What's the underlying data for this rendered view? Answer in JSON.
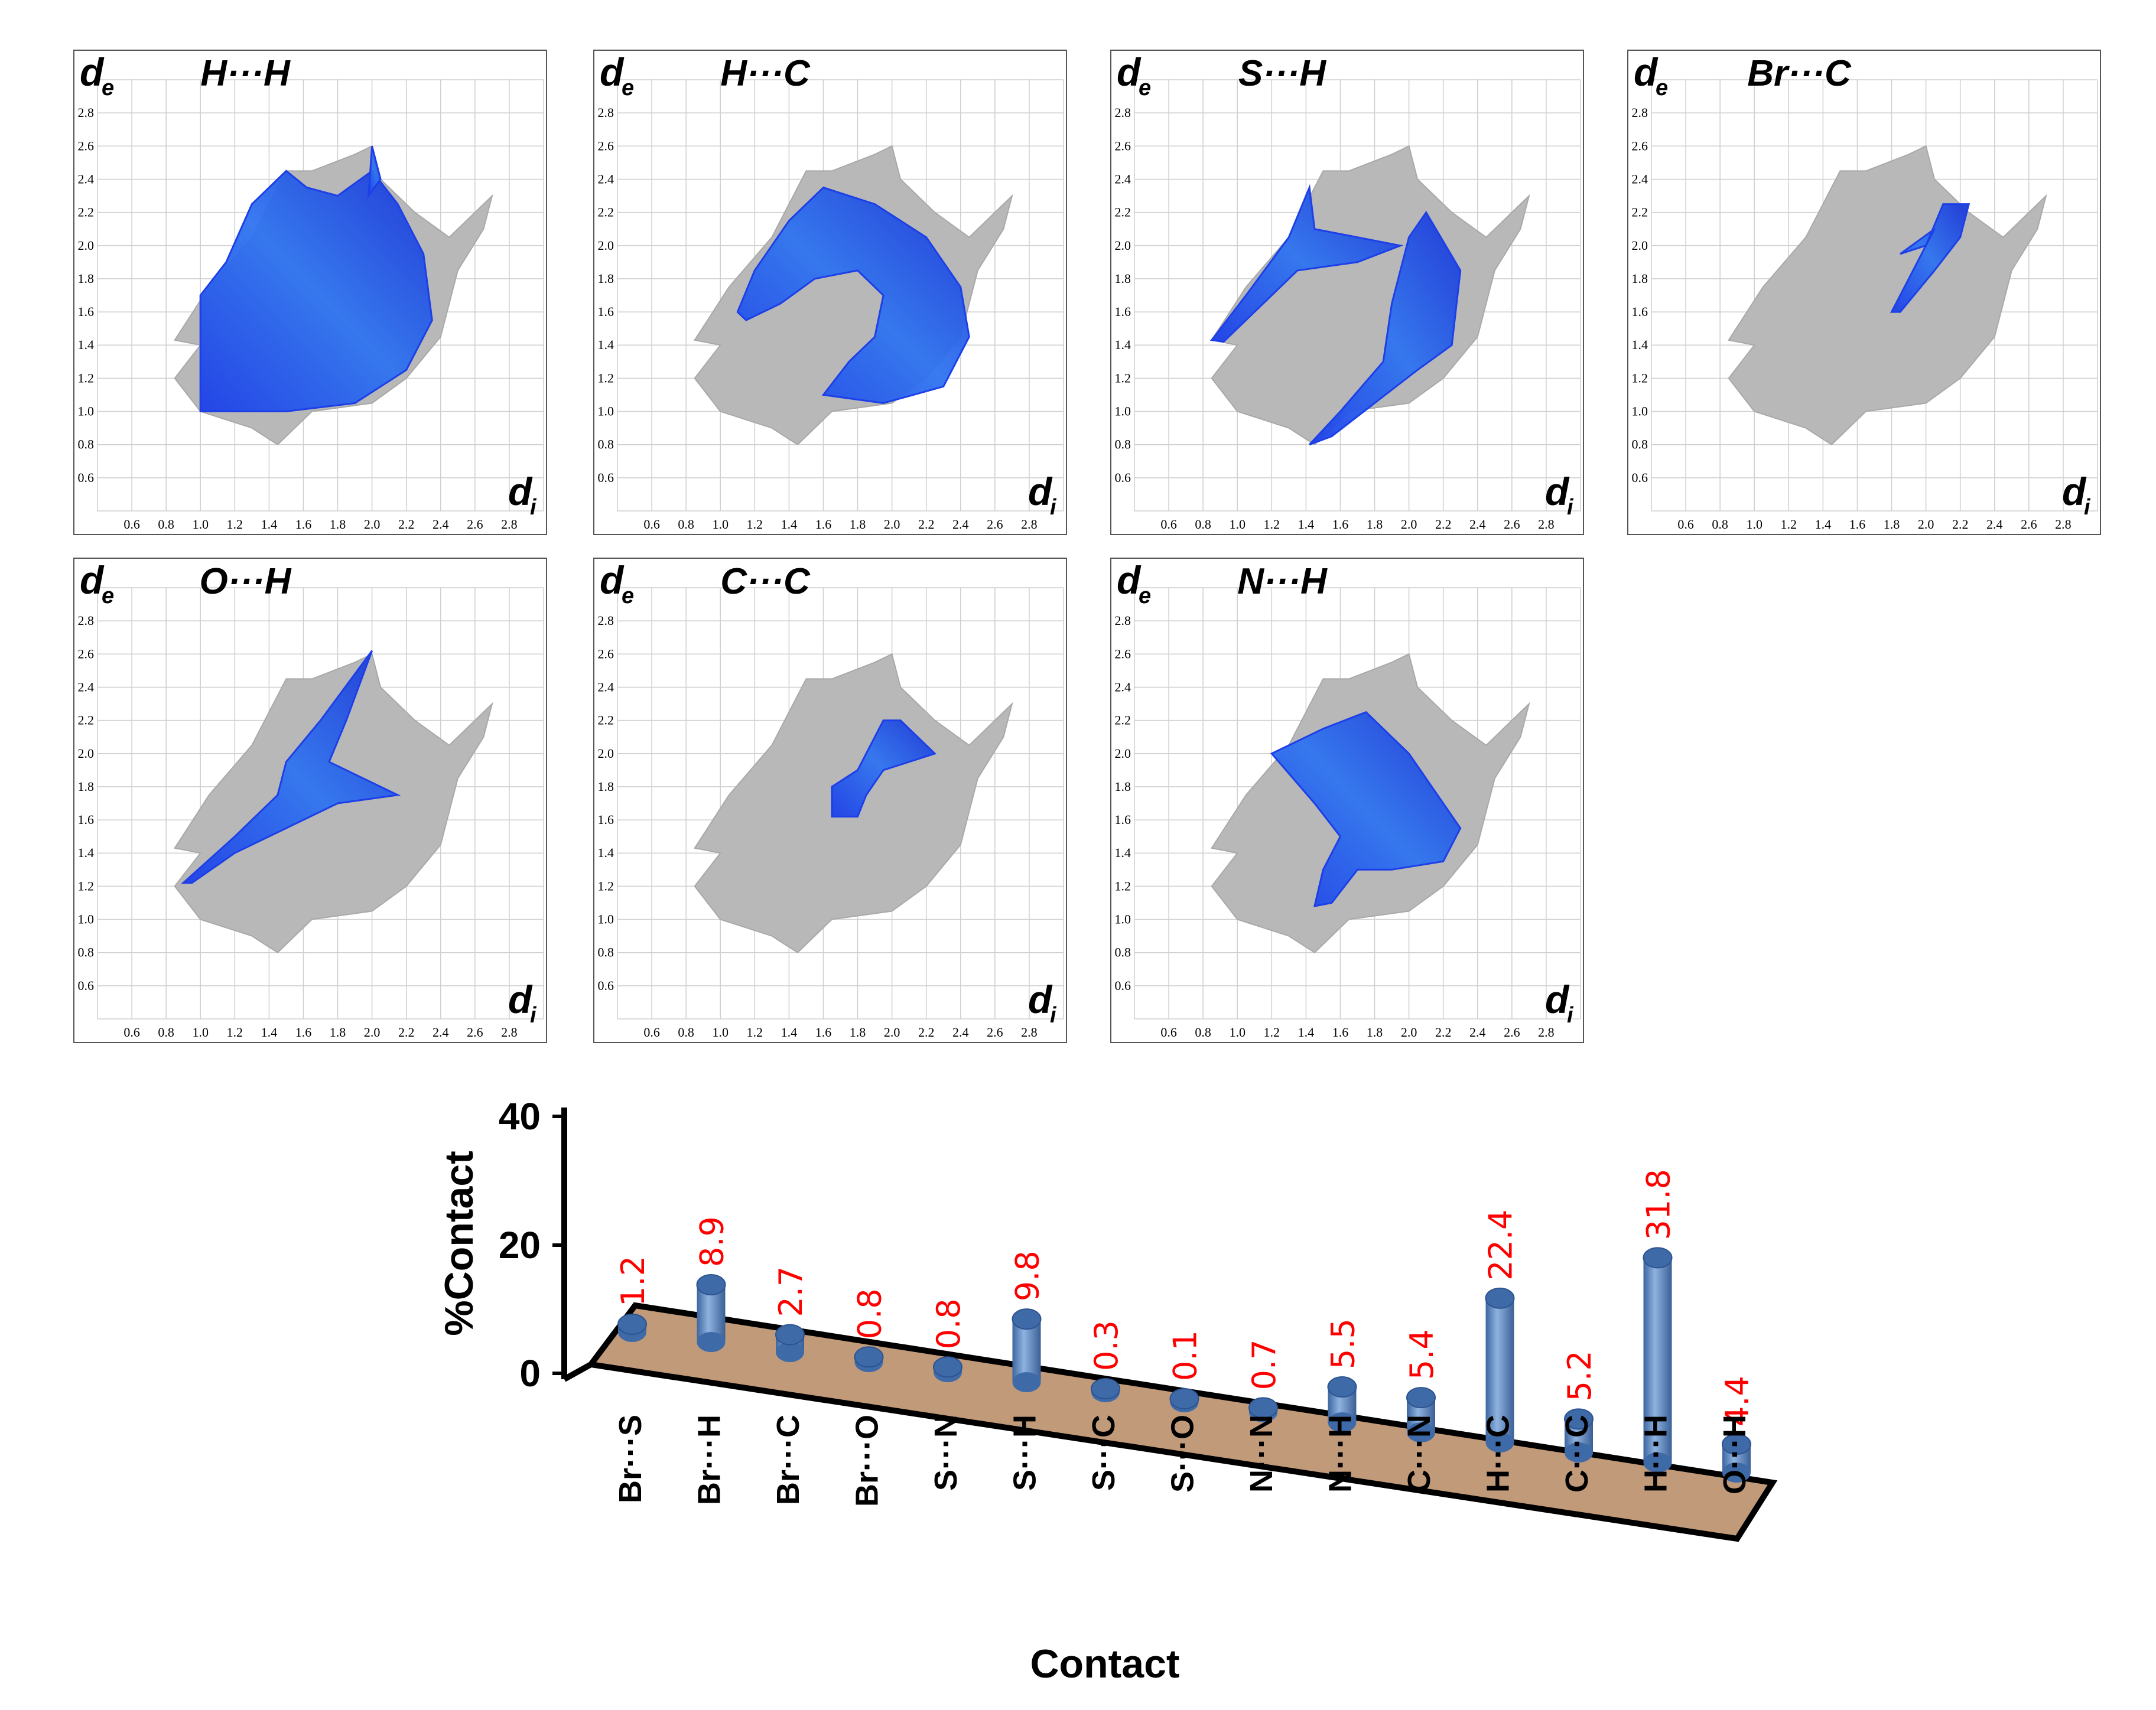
{
  "chart_data": [
    {
      "type": "scatter",
      "subtype": "fingerprint-plot-panels",
      "xlabel": {
        "main": "d",
        "sub": "i"
      },
      "ylabel": {
        "main": "d",
        "sub": "e"
      },
      "xlim": [
        0.4,
        3.0
      ],
      "ylim": [
        0.4,
        3.0
      ],
      "x_ticks": [
        "0.6",
        "0.8",
        "1.0",
        "1.2",
        "1.4",
        "1.6",
        "1.8",
        "2.0",
        "2.2",
        "2.4",
        "2.6",
        "2.8"
      ],
      "y_ticks": [
        "0.6",
        "0.8",
        "1.0",
        "1.2",
        "1.4",
        "1.6",
        "1.8",
        "2.0",
        "2.2",
        "2.4",
        "2.6",
        "2.8"
      ],
      "colors": {
        "full": "#b8b8b8",
        "highlight": "#1c3fe8",
        "highlight_light": "#3a8bf0"
      },
      "panels": [
        {
          "title": "H···H",
          "regions": [
            {
              "points": [
                [
                  1.0,
                  1.0
                ],
                [
                  1.0,
                  1.7
                ],
                [
                  1.15,
                  1.9
                ],
                [
                  1.3,
                  2.25
                ],
                [
                  1.5,
                  2.45
                ],
                [
                  1.62,
                  2.35
                ],
                [
                  1.8,
                  2.3
                ],
                [
                  2.0,
                  2.45
                ],
                [
                  2.15,
                  2.25
                ],
                [
                  2.3,
                  1.95
                ],
                [
                  2.35,
                  1.55
                ],
                [
                  2.2,
                  1.25
                ],
                [
                  1.9,
                  1.05
                ],
                [
                  1.5,
                  1.0
                ]
              ]
            },
            {
              "points": [
                [
                  1.98,
                  2.3
                ],
                [
                  2.0,
                  2.6
                ],
                [
                  2.05,
                  2.4
                ]
              ]
            }
          ]
        },
        {
          "title": "H···C",
          "regions": [
            {
              "points": [
                [
                  1.1,
                  1.6
                ],
                [
                  1.2,
                  1.85
                ],
                [
                  1.4,
                  2.15
                ],
                [
                  1.6,
                  2.35
                ],
                [
                  1.9,
                  2.25
                ],
                [
                  2.2,
                  2.05
                ],
                [
                  2.4,
                  1.75
                ],
                [
                  2.45,
                  1.45
                ],
                [
                  2.3,
                  1.15
                ],
                [
                  1.95,
                  1.05
                ],
                [
                  1.6,
                  1.1
                ],
                [
                  1.75,
                  1.3
                ],
                [
                  1.9,
                  1.45
                ],
                [
                  1.95,
                  1.7
                ],
                [
                  1.8,
                  1.85
                ],
                [
                  1.55,
                  1.8
                ],
                [
                  1.35,
                  1.65
                ],
                [
                  1.15,
                  1.55
                ]
              ]
            }
          ]
        },
        {
          "title": "S···H",
          "regions": [
            {
              "points": [
                [
                  0.85,
                  1.43
                ],
                [
                  1.05,
                  1.7
                ],
                [
                  1.3,
                  2.05
                ],
                [
                  1.42,
                  2.35
                ],
                [
                  1.45,
                  2.1
                ],
                [
                  1.7,
                  2.05
                ],
                [
                  1.95,
                  2.0
                ],
                [
                  1.7,
                  1.9
                ],
                [
                  1.35,
                  1.85
                ],
                [
                  1.1,
                  1.6
                ],
                [
                  0.92,
                  1.42
                ]
              ]
            },
            {
              "points": [
                [
                  1.42,
                  0.8
                ],
                [
                  1.6,
                  1.0
                ],
                [
                  1.85,
                  1.3
                ],
                [
                  1.9,
                  1.65
                ],
                [
                  2.0,
                  2.05
                ],
                [
                  2.1,
                  2.2
                ],
                [
                  2.3,
                  1.85
                ],
                [
                  2.25,
                  1.4
                ],
                [
                  2.05,
                  1.25
                ],
                [
                  1.8,
                  1.05
                ],
                [
                  1.55,
                  0.85
                ]
              ]
            }
          ]
        },
        {
          "title": "Br···C",
          "regions": [
            {
              "points": [
                [
                  1.8,
                  1.6
                ],
                [
                  1.95,
                  1.9
                ],
                [
                  2.05,
                  2.1
                ],
                [
                  1.85,
                  1.95
                ],
                [
                  2.0,
                  2.0
                ],
                [
                  2.1,
                  2.25
                ],
                [
                  2.25,
                  2.25
                ],
                [
                  2.2,
                  2.05
                ],
                [
                  2.05,
                  1.85
                ],
                [
                  1.85,
                  1.6
                ]
              ]
            }
          ]
        },
        {
          "title": "O···H",
          "regions": [
            {
              "points": [
                [
                  0.9,
                  1.22
                ],
                [
                  1.2,
                  1.5
                ],
                [
                  1.45,
                  1.75
                ],
                [
                  1.5,
                  1.95
                ],
                [
                  1.7,
                  2.2
                ],
                [
                  2.0,
                  2.62
                ],
                [
                  1.85,
                  2.2
                ],
                [
                  1.75,
                  1.95
                ],
                [
                  2.15,
                  1.75
                ],
                [
                  1.8,
                  1.7
                ],
                [
                  1.5,
                  1.55
                ],
                [
                  1.2,
                  1.4
                ],
                [
                  0.95,
                  1.22
                ]
              ]
            }
          ]
        },
        {
          "title": "C···C",
          "regions": [
            {
              "points": [
                [
                  1.65,
                  1.62
                ],
                [
                  1.65,
                  1.8
                ],
                [
                  1.8,
                  1.9
                ],
                [
                  1.95,
                  2.2
                ],
                [
                  2.05,
                  2.2
                ],
                [
                  2.25,
                  2.0
                ],
                [
                  2.1,
                  1.95
                ],
                [
                  1.95,
                  1.9
                ],
                [
                  1.85,
                  1.75
                ],
                [
                  1.8,
                  1.62
                ]
              ]
            }
          ]
        },
        {
          "title": "N···H",
          "regions": [
            {
              "points": [
                [
                  1.45,
                  1.08
                ],
                [
                  1.5,
                  1.3
                ],
                [
                  1.6,
                  1.5
                ],
                [
                  1.45,
                  1.7
                ],
                [
                  1.2,
                  2.0
                ],
                [
                  1.5,
                  2.15
                ],
                [
                  1.75,
                  2.25
                ],
                [
                  2.0,
                  2.0
                ],
                [
                  2.3,
                  1.55
                ],
                [
                  2.2,
                  1.35
                ],
                [
                  1.9,
                  1.3
                ],
                [
                  1.7,
                  1.3
                ],
                [
                  1.55,
                  1.1
                ]
              ]
            }
          ]
        }
      ],
      "full_shape": [
        [
          0.85,
          1.43
        ],
        [
          1.05,
          1.75
        ],
        [
          1.3,
          2.05
        ],
        [
          1.5,
          2.45
        ],
        [
          1.65,
          2.45
        ],
        [
          1.9,
          2.55
        ],
        [
          2.0,
          2.6
        ],
        [
          2.05,
          2.4
        ],
        [
          2.25,
          2.2
        ],
        [
          2.45,
          2.05
        ],
        [
          2.7,
          2.3
        ],
        [
          2.65,
          2.1
        ],
        [
          2.5,
          1.85
        ],
        [
          2.4,
          1.45
        ],
        [
          2.2,
          1.2
        ],
        [
          2.0,
          1.05
        ],
        [
          1.65,
          1.0
        ],
        [
          1.45,
          0.8
        ],
        [
          1.3,
          0.9
        ],
        [
          1.0,
          1.0
        ],
        [
          0.85,
          1.2
        ],
        [
          1.0,
          1.4
        ]
      ]
    },
    {
      "type": "bar",
      "subtype": "3d-cylinder",
      "xlabel": "Contact",
      "ylabel": "%Contact",
      "ylim": [
        0,
        40
      ],
      "y_ticks": [
        "0",
        "20",
        "40"
      ],
      "categories": [
        "Br···S",
        "Br···H",
        "Br···C",
        "Br···O",
        "S···N",
        "S···H",
        "S···C",
        "S···O",
        "N···N",
        "N···H",
        "C···N",
        "H···C",
        "C···C",
        "H···H",
        "O···H"
      ],
      "values": [
        1.2,
        8.9,
        2.7,
        0.8,
        0.8,
        9.8,
        0.3,
        0.1,
        0.7,
        5.5,
        5.4,
        22.4,
        5.2,
        31.8,
        4.4
      ],
      "value_labels": [
        "1.2",
        "8.9",
        "2.7",
        "0.8",
        "0.8",
        "9.8",
        "0.3",
        "0.1",
        "0.7",
        "5.5",
        "5.4",
        "22.4",
        "5.2",
        "31.8",
        "4.4"
      ],
      "colors": {
        "bar": "#5b86c0",
        "bar_top": "#3e6aa8",
        "floor": "#c19a7a",
        "label": "#ff0000"
      }
    }
  ]
}
